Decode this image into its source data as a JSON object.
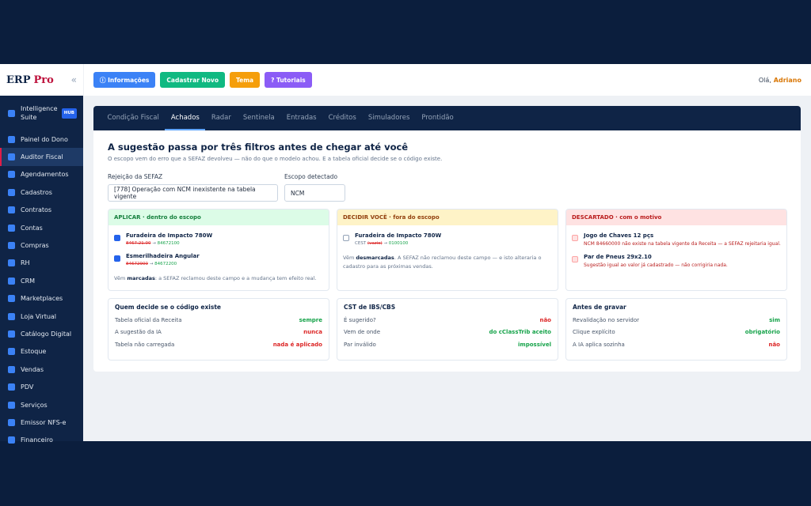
{
  "sidebar": {
    "brand": "ERP",
    "brand_accent": "Pro",
    "collapse": "«",
    "active_item": 2,
    "items": [
      {
        "label": "Intelligence Suite",
        "badge": "HUB"
      },
      {
        "label": "Painel do Dono"
      },
      {
        "label": "Auditor Fiscal"
      },
      {
        "label": "Agendamentos"
      },
      {
        "label": "Cadastros"
      },
      {
        "label": "Contratos"
      },
      {
        "label": "Contas"
      },
      {
        "label": "Compras"
      },
      {
        "label": "RH"
      },
      {
        "label": "CRM"
      },
      {
        "label": "Marketplaces"
      },
      {
        "label": "Loja Virtual"
      },
      {
        "label": "Catálogo Digital"
      },
      {
        "label": "Estoque"
      },
      {
        "label": "Vendas"
      },
      {
        "label": "PDV"
      },
      {
        "label": "Serviços"
      },
      {
        "label": "Emissor NFS-e"
      },
      {
        "label": "Financeiro"
      }
    ]
  },
  "topbar": {
    "buttons": [
      {
        "label": "ⓘ Informações",
        "color": "#3b82f6"
      },
      {
        "label": "Cadastrar Novo",
        "color": "#10b981"
      },
      {
        "label": "Tema",
        "color": "#f59e0b"
      },
      {
        "label": "? Tutoriais",
        "color": "#8b5cf6"
      }
    ],
    "greeting": "Olá,",
    "user": "Adriano"
  },
  "tabs": [
    "Condição Fiscal",
    "Achados",
    "Radar",
    "Sentinela",
    "Entradas",
    "Créditos",
    "Simuladores",
    "Prontidão"
  ],
  "active_tab": 1,
  "heading": "A sugestão passa por três filtros antes de chegar até você",
  "subheading": "O escopo vem do erro que a SEFAZ devolveu — não do que o modelo achou. E a tabela oficial decide se o código existe.",
  "fields": [
    {
      "label": "Rejeição da SEFAZ",
      "value": "[778] Operação com NCM inexistente na tabela vigente"
    },
    {
      "label": "Escopo detectado",
      "value": "NCM"
    }
  ],
  "arrow": "→",
  "columns": [
    {
      "title": "APLICAR · dentro do escopo",
      "items": [
        {
          "name": "Furadeira de Impacto 780W",
          "old": "8467.21.00",
          "new": "84672100",
          "checked": true
        },
        {
          "name": "Esmerilhadeira Angular",
          "old": "84672900",
          "new": "84672200",
          "checked": true
        }
      ],
      "note_pre": "Vêm",
      "note_bold": "marcadas",
      "note_post": ": a SEFAZ reclamou deste campo e a mudança tem efeito real."
    },
    {
      "title": "DECIDIR VOCÊ · fora do escopo",
      "items": [
        {
          "name": "Furadeira de Impacto 780W",
          "prefix": "CEST",
          "old": "(vazio)",
          "new": "0100100",
          "checked": false
        }
      ],
      "note_pre": "Vêm",
      "note_bold": "desmarcadas",
      "note_post": ". A SEFAZ não reclamou deste campo — e isto alteraria o cadastro para as próximas vendas."
    },
    {
      "title": "DESCARTADO · com o motivo",
      "items": [
        {
          "name": "Jogo de Chaves 12 pçs",
          "reason": "NCM 84660000 não existe na tabela vigente da Receita — a SEFAZ rejeitaria igual."
        },
        {
          "name": "Par de Pneus 29x2.10",
          "reason": "Sugestão igual ao valor já cadastrado — não corrigiria nada."
        }
      ]
    }
  ],
  "cards": [
    {
      "title": "Quem decide se o código existe",
      "rows": [
        {
          "label": "Tabela oficial da Receita",
          "value": "sempre",
          "color": "#16a34a"
        },
        {
          "label": "A sugestão da IA",
          "value": "nunca",
          "color": "#dc2626"
        },
        {
          "label": "Tabela não carregada",
          "value": "nada é aplicado",
          "color": "#dc2626"
        }
      ]
    },
    {
      "title": "CST de IBS/CBS",
      "rows": [
        {
          "label": "É sugerido?",
          "value": "não",
          "color": "#dc2626"
        },
        {
          "label": "Vem de onde",
          "value": "do cClassTrib aceito",
          "color": "#16a34a"
        },
        {
          "label": "Par inválido",
          "value": "impossível",
          "color": "#16a34a"
        }
      ]
    },
    {
      "title": "Antes de gravar",
      "rows": [
        {
          "label": "Revalidação no servidor",
          "value": "sim",
          "color": "#16a34a"
        },
        {
          "label": "Clique explícito",
          "value": "obrigatório",
          "color": "#16a34a"
        },
        {
          "label": "A IA aplica sozinha",
          "value": "não",
          "color": "#dc2626"
        }
      ]
    }
  ]
}
